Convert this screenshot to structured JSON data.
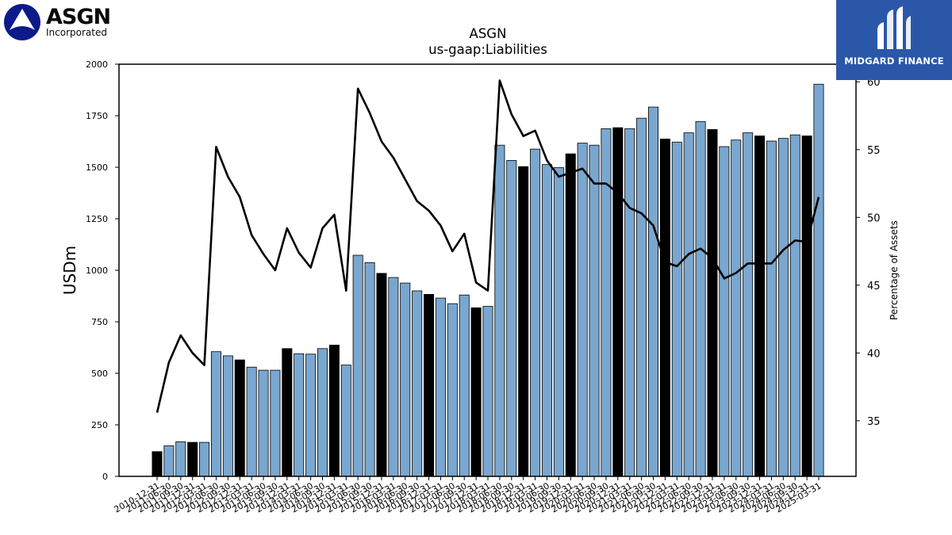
{
  "logos": {
    "left_ticker": "ASGN",
    "left_sub": "Incorporated",
    "right_brand": "MIDGARD FINANCE"
  },
  "chart_data": {
    "type": "bar",
    "title": "ASGN",
    "subtitle": "us-gaap:Liabilities",
    "ylabel": "USDm",
    "y2label": "Percentage of Assets",
    "ylim": [
      0,
      2000
    ],
    "y2lim": [
      30.9,
      61.3
    ],
    "yticks": [
      0,
      250,
      500,
      750,
      1000,
      1250,
      1500,
      1750,
      2000
    ],
    "y2ticks": [
      35,
      40,
      45,
      50,
      55,
      60
    ],
    "grid": false,
    "bar_colors": {
      "annual": "#000000",
      "quarterly": "#7aa7cf"
    },
    "line_color": "#000000",
    "categories": [
      "2010-12-31",
      "2011-06-30",
      "2011-09-30",
      "2011-12-31",
      "2012-03-31",
      "2012-06-30",
      "2012-09-30",
      "2012-12-31",
      "2013-03-31",
      "2013-06-30",
      "2013-09-30",
      "2013-12-31",
      "2014-03-31",
      "2014-06-30",
      "2014-09-30",
      "2014-12-31",
      "2015-03-31",
      "2015-06-30",
      "2015-09-30",
      "2015-12-31",
      "2016-03-31",
      "2016-06-30",
      "2016-09-30",
      "2016-12-31",
      "2017-03-31",
      "2017-06-30",
      "2017-09-30",
      "2017-12-31",
      "2018-03-31",
      "2018-06-30",
      "2018-09-30",
      "2018-12-31",
      "2019-03-31",
      "2019-06-30",
      "2019-09-30",
      "2019-12-31",
      "2020-03-31",
      "2020-06-30",
      "2020-09-30",
      "2020-12-31",
      "2021-03-31",
      "2021-06-30",
      "2021-09-30",
      "2021-12-31",
      "2022-03-31",
      "2022-06-30",
      "2022-09-30",
      "2022-12-31",
      "2023-03-31",
      "2023-06-30",
      "2023-09-30",
      "2023-12-31",
      "2024-03-31",
      "2024-06-30",
      "2024-09-30",
      "2024-12-31",
      "2025-03-31"
    ],
    "series": [
      {
        "name": "",
        "kind": "bar",
        "values": [
          120,
          148,
          168,
          165,
          165,
          605,
          585,
          565,
          530,
          515,
          515,
          620,
          595,
          593,
          620,
          637,
          540,
          1073,
          1037,
          985,
          965,
          938,
          900,
          883,
          865,
          838,
          880,
          818,
          825,
          1607,
          1533,
          1503,
          1588,
          1513,
          1498,
          1565,
          1617,
          1607,
          1687,
          1692,
          1687,
          1738,
          1792,
          1637,
          1622,
          1667,
          1722,
          1683,
          1600,
          1632,
          1667,
          1652,
          1627,
          1640,
          1657,
          1652,
          1903
        ],
        "annual": [
          true,
          false,
          false,
          true,
          false,
          false,
          false,
          true,
          false,
          false,
          false,
          true,
          false,
          false,
          false,
          true,
          false,
          false,
          false,
          true,
          false,
          false,
          false,
          true,
          false,
          false,
          false,
          true,
          false,
          false,
          false,
          true,
          false,
          false,
          false,
          true,
          false,
          false,
          false,
          true,
          false,
          false,
          false,
          true,
          false,
          false,
          false,
          true,
          false,
          false,
          false,
          true,
          false,
          false,
          false,
          true,
          false
        ]
      },
      {
        "name": "",
        "kind": "line",
        "axis": "right",
        "values": [
          35.6,
          39.3,
          41.3,
          40.0,
          39.1,
          55.2,
          53.0,
          51.5,
          48.7,
          47.3,
          46.1,
          49.2,
          47.4,
          46.3,
          49.2,
          50.2,
          44.6,
          59.5,
          57.7,
          55.6,
          54.4,
          52.8,
          51.2,
          50.5,
          49.4,
          47.5,
          48.8,
          45.2,
          44.6,
          60.1,
          57.6,
          56.0,
          56.4,
          54.2,
          53.0,
          53.3,
          53.6,
          52.5,
          52.5,
          51.8,
          50.7,
          50.3,
          49.4,
          46.7,
          46.4,
          47.3,
          47.7,
          47.0,
          45.5,
          45.9,
          46.6,
          46.6,
          46.6,
          47.6,
          48.3,
          48.2,
          51.5
        ]
      }
    ]
  }
}
